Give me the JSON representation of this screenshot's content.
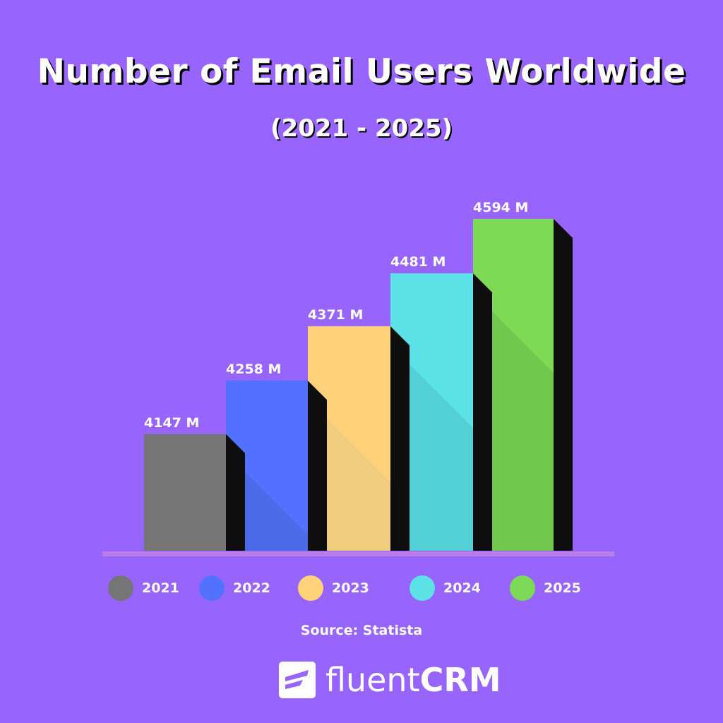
{
  "title": "Number of Email Users Worldwide",
  "subtitle": "(2021 - 2025)",
  "source": "Source: Statista",
  "logo": {
    "part1": "fluent",
    "part2": "CRM"
  },
  "chart_data": {
    "type": "bar",
    "title": "Number of Email Users Worldwide",
    "subtitle": "(2021 - 2025)",
    "categories": [
      "2021",
      "2022",
      "2023",
      "2024",
      "2025"
    ],
    "values": [
      4147,
      4258,
      4371,
      4481,
      4594
    ],
    "data_labels": [
      "4147 M",
      "4258 M",
      "4371 M",
      "4481 M",
      "4594 M"
    ],
    "unit": "M",
    "colors": [
      "#757575",
      "#5271ff",
      "#ffd27a",
      "#5ce1e6",
      "#7ed957"
    ],
    "shade_colors": [
      "#757575",
      "#4a6ae8",
      "#f0cc7e",
      "#53d0d6",
      "#72c84f"
    ],
    "xlabel": "",
    "ylabel": "",
    "ylim": [
      3905,
      4594
    ],
    "grid": false,
    "legend": "bottom"
  }
}
